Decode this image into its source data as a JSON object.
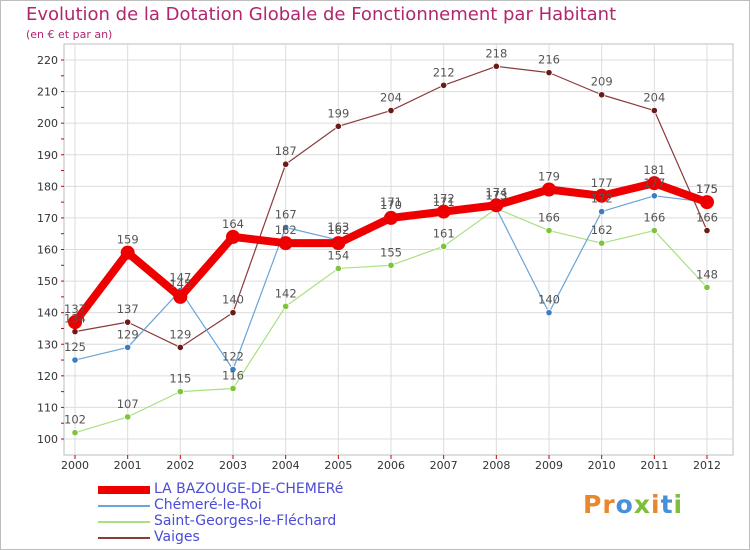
{
  "header": {
    "title": "Evolution de la Dotation Globale de Fonctionnement par Habitant",
    "subtitle": "(en € et par an)"
  },
  "brand": {
    "text": "Proxiti",
    "colors": [
      "#e8872c",
      "#e8872c",
      "#4a90d9",
      "#7cbf3a",
      "#e8872c",
      "#4a90d9",
      "#7cbf3a"
    ]
  },
  "chart_data": {
    "type": "line",
    "title": "Evolution de la Dotation Globale de Fonctionnement par Habitant",
    "subtitle": "(en € et par an)",
    "xlabel": "",
    "ylabel": "",
    "ylim": [
      100,
      220
    ],
    "yticks": [
      100,
      110,
      120,
      130,
      140,
      150,
      160,
      170,
      180,
      190,
      200,
      210,
      220
    ],
    "categories": [
      "2000",
      "2001",
      "2002",
      "2003",
      "2004",
      "2005",
      "2006",
      "2007",
      "2008",
      "2009",
      "2010",
      "2011",
      "2012"
    ],
    "grid": true,
    "series": [
      {
        "name": "LA BAZOUGE-DE-CHEMERé",
        "color": "#ee0000",
        "width": 8,
        "values": [
          137,
          159,
          145,
          164,
          162,
          162,
          170,
          172,
          174,
          179,
          177,
          181,
          175
        ]
      },
      {
        "name": "Chémeré-le-Roi",
        "color": "#6aa4d8",
        "width": 1.2,
        "marker": "#3a7fc4",
        "values": [
          125,
          129,
          147,
          122,
          167,
          163,
          171,
          171,
          173,
          140,
          172,
          177,
          175
        ]
      },
      {
        "name": "Saint-Georges-le-Fléchard",
        "color": "#a8e080",
        "width": 1.2,
        "marker": "#7cc43a",
        "values": [
          102,
          107,
          115,
          116,
          142,
          154,
          155,
          161,
          173,
          166,
          162,
          166,
          148
        ]
      },
      {
        "name": "Vaiges",
        "color": "#8b3a3a",
        "width": 1.2,
        "marker": "#6b1a1a",
        "values": [
          134,
          137,
          129,
          140,
          187,
          199,
          204,
          212,
          218,
          216,
          209,
          204,
          166
        ]
      }
    ],
    "data_labels": [
      [
        "137",
        "159",
        "145",
        "164",
        "162",
        "162",
        "170",
        "172",
        "174",
        "179",
        "177",
        "181",
        "175"
      ],
      [
        "125",
        "129",
        "147",
        "122",
        "167",
        "163",
        "171",
        "171",
        "173",
        "140",
        "172",
        "177",
        "175"
      ],
      [
        "102",
        "107",
        "115",
        "116",
        "142",
        "154",
        "155",
        "161",
        "173",
        "166",
        "162",
        "166",
        "148"
      ],
      [
        "134",
        "137",
        "129",
        "140",
        "187",
        "199",
        "204",
        "212",
        "218",
        "216",
        "209",
        "204",
        "166"
      ]
    ],
    "legend": "bottom-left"
  }
}
